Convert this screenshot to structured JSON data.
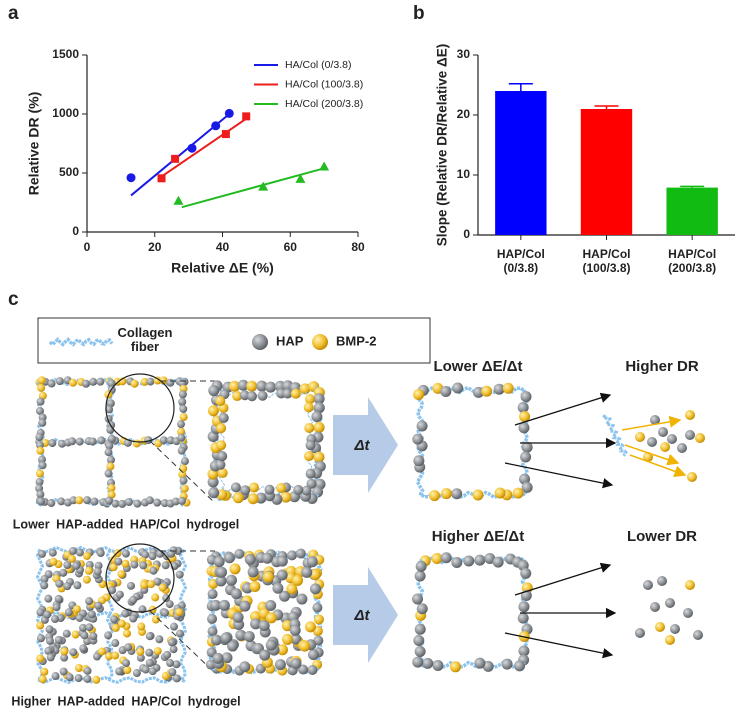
{
  "panel_labels": [
    "a",
    "b",
    "c"
  ],
  "chart_data": [
    {
      "type": "scatter",
      "xlabel": "Relative ΔE (%)",
      "ylabel": "Relative DR (%)",
      "xlim": [
        0,
        80
      ],
      "xticks": [
        0,
        20,
        40,
        60,
        80
      ],
      "ylim": [
        0,
        1500
      ],
      "yticks": [
        0,
        500,
        1000,
        1500
      ],
      "legend": "upper right",
      "series": [
        {
          "name": "HA/Col (0/3.8)",
          "color": "#1a1ae6",
          "marker": "circle",
          "x": [
            13,
            31,
            38,
            42
          ],
          "values": [
            460,
            710,
            900,
            1005
          ],
          "fit": {
            "x": [
              13,
              42
            ],
            "values": [
              310,
              1000
            ]
          }
        },
        {
          "name": "HA/Col (100/3.8)",
          "color": "#ee1c1c",
          "marker": "square",
          "x": [
            22,
            26,
            41,
            47
          ],
          "values": [
            455,
            620,
            830,
            980
          ],
          "fit": {
            "x": [
              22,
              47
            ],
            "values": [
              470,
              960
            ]
          }
        },
        {
          "name": "HA/Col (200/3.8)",
          "color": "#22bb22",
          "marker": "triangle",
          "x": [
            27,
            52,
            63,
            70
          ],
          "values": [
            265,
            385,
            450,
            555
          ],
          "fit": {
            "x": [
              28,
              70
            ],
            "values": [
              210,
              540
            ]
          }
        }
      ]
    },
    {
      "type": "bar",
      "ylabel": "Slope (Relative DR/Relative ΔE)",
      "categories": [
        "HAP/Col\n(0/3.8)",
        "HAP/Col\n(100/3.8)",
        "HAP/Col\n(200/3.8)"
      ],
      "values": [
        24,
        21,
        7.9
      ],
      "errors": [
        1.2,
        0.5,
        0.2
      ],
      "colors": [
        "#0000ff",
        "#ff0000",
        "#11bb11"
      ],
      "ylim": [
        0,
        30
      ],
      "yticks": [
        0,
        10,
        20,
        30
      ]
    }
  ],
  "diagram": {
    "legend": [
      "Collagen\nfiber",
      "HAP",
      "BMP-2"
    ],
    "top": {
      "step": "Δt",
      "rate": "Lower ΔE/Δt",
      "release": "Higher DR",
      "caption": "Lower HAP-added HAP/Col hydrogel"
    },
    "bottom": {
      "step": "Δt",
      "rate": "Higher ΔE/Δt",
      "release": "Lower DR",
      "caption": "Higher HAP-added HAP/Col hydrogel"
    }
  }
}
